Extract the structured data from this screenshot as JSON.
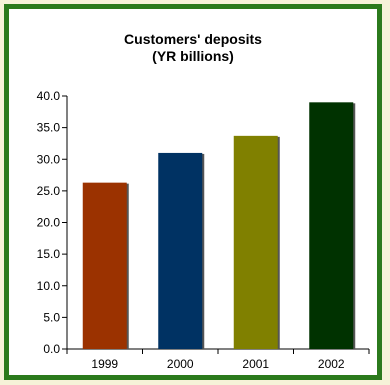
{
  "chart_data": {
    "type": "bar",
    "title": "Customers' deposits",
    "subtitle": "(YR billions)",
    "categories": [
      "1999",
      "2000",
      "2001",
      "2002"
    ],
    "values": [
      26.3,
      31.0,
      33.7,
      39.0
    ],
    "colors": [
      "#9b3200",
      "#003263",
      "#808000",
      "#003200"
    ],
    "ylim": [
      0,
      40
    ],
    "yticks": [
      "0.0",
      "5.0",
      "10.0",
      "15.0",
      "20.0",
      "25.0",
      "30.0",
      "35.0",
      "40.0"
    ],
    "grid": false,
    "legend": "none"
  },
  "theme": {
    "page_background": "#f6f2d8",
    "border_color": "#2b7a1c",
    "plot_background": "#ffffff",
    "bar_shadow": "#555555"
  }
}
